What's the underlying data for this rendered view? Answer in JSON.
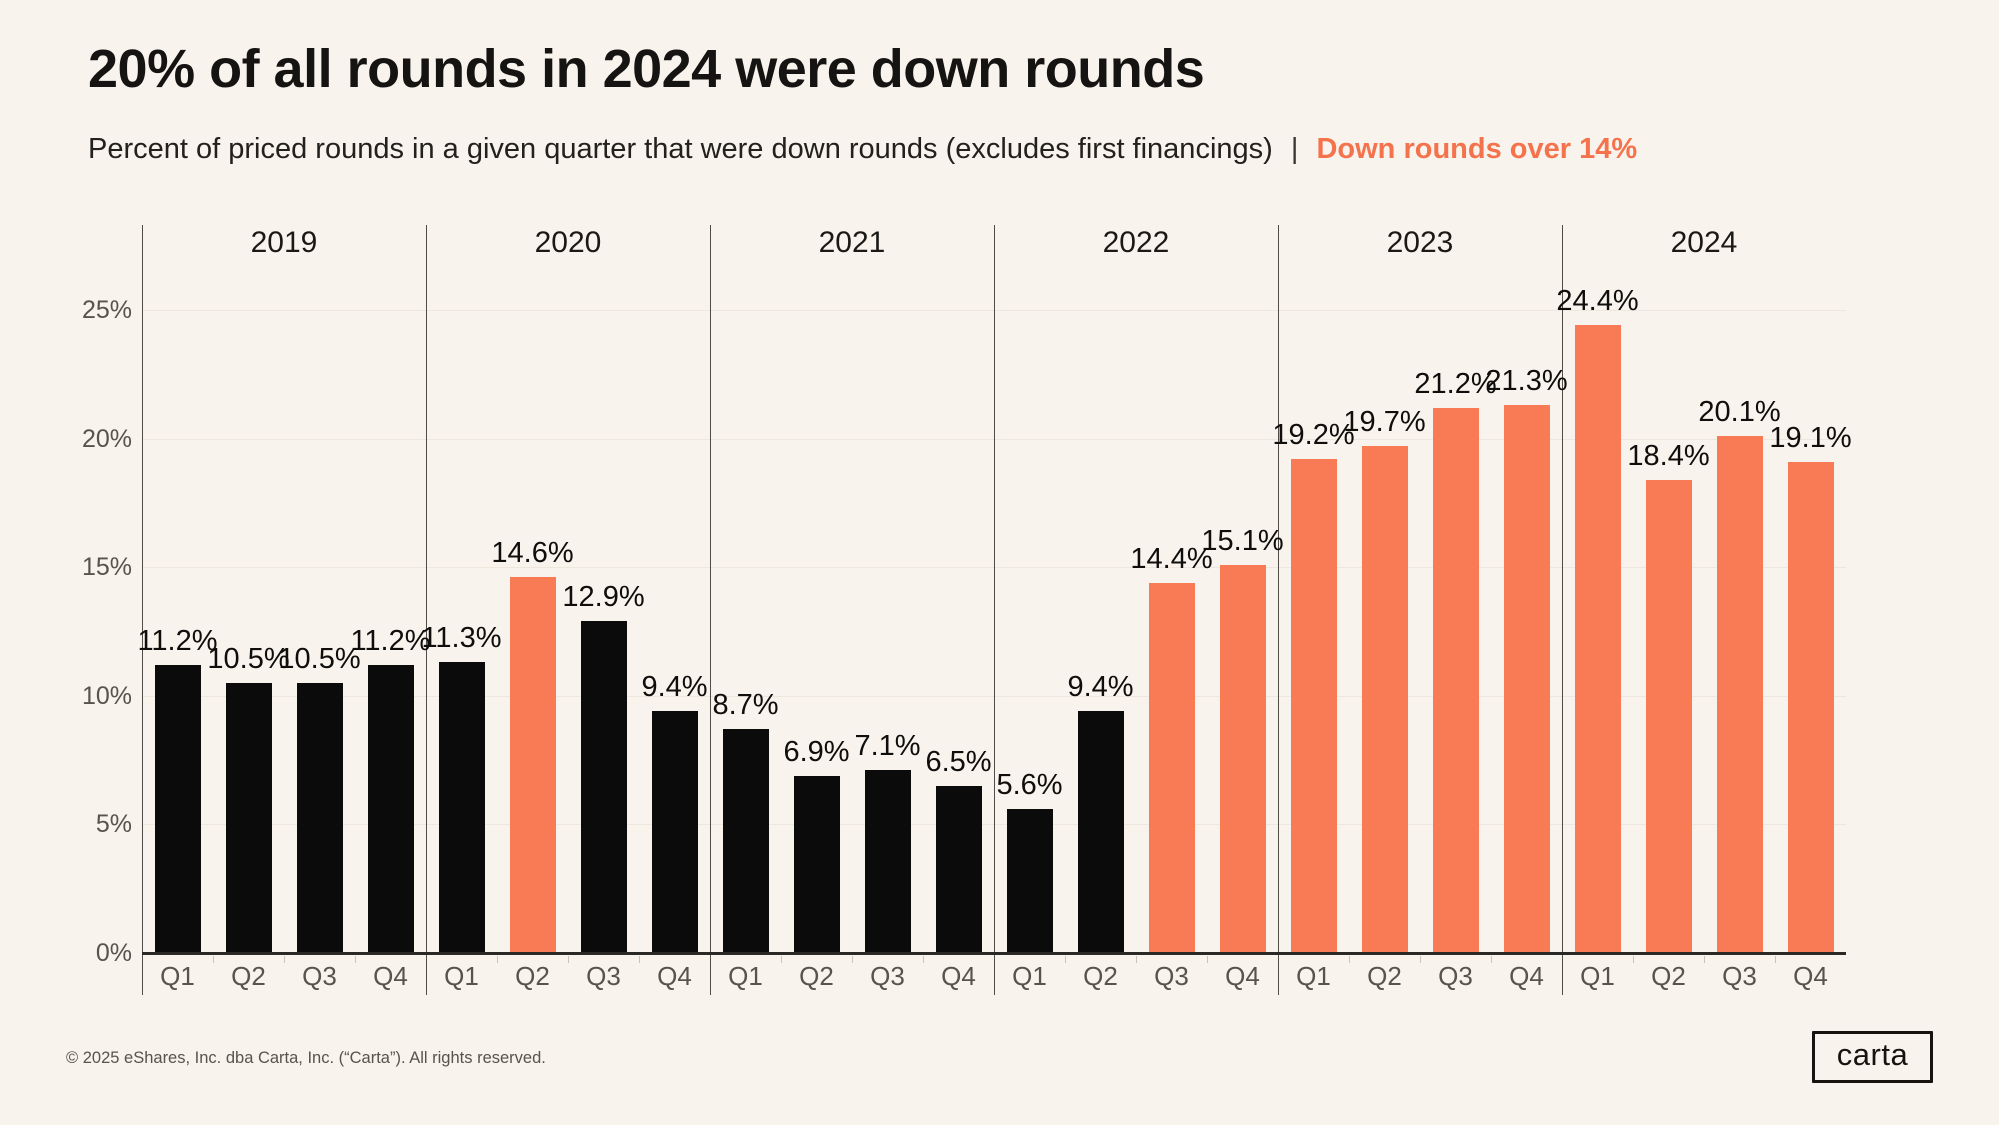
{
  "header": {
    "title": "20% of all rounds in 2024 were down rounds",
    "subtitle": "Percent of priced rounds in a given quarter that were down rounds (excludes first financings)",
    "separator": "|",
    "highlight": "Down rounds over 14%"
  },
  "chart_data": {
    "type": "bar",
    "groups": [
      {
        "year": "2019",
        "values": [
          11.2,
          10.5,
          10.5,
          11.2
        ]
      },
      {
        "year": "2020",
        "values": [
          11.3,
          14.6,
          12.9,
          9.4
        ]
      },
      {
        "year": "2021",
        "values": [
          8.7,
          6.9,
          7.1,
          6.5
        ]
      },
      {
        "year": "2022",
        "values": [
          5.6,
          9.4,
          14.4,
          15.1
        ]
      },
      {
        "year": "2023",
        "values": [
          19.2,
          19.7,
          21.2,
          21.3
        ]
      },
      {
        "year": "2024",
        "values": [
          24.4,
          18.4,
          20.1,
          19.1
        ]
      }
    ],
    "quarter_labels": [
      "Q1",
      "Q2",
      "Q3",
      "Q4"
    ],
    "yticks": [
      0,
      5,
      10,
      15,
      20,
      25
    ],
    "ytick_format": "{v}%",
    "value_label_format": "{v}%",
    "value_label_decimals": 1,
    "ylim": [
      0,
      28
    ],
    "grid": "horizontal-light",
    "highlight_threshold_pct": 14,
    "legend_note": "Down rounds over 14%"
  },
  "colors": {
    "background": "#F8F3EC",
    "bar_default": "#0B0B0B",
    "bar_highlight": "#F97B55",
    "accent_text": "#F4734C"
  },
  "footer": {
    "copyright": "© 2025 eShares, Inc. dba Carta, Inc. (“Carta”). All rights reserved.",
    "logo_text": "carta"
  }
}
